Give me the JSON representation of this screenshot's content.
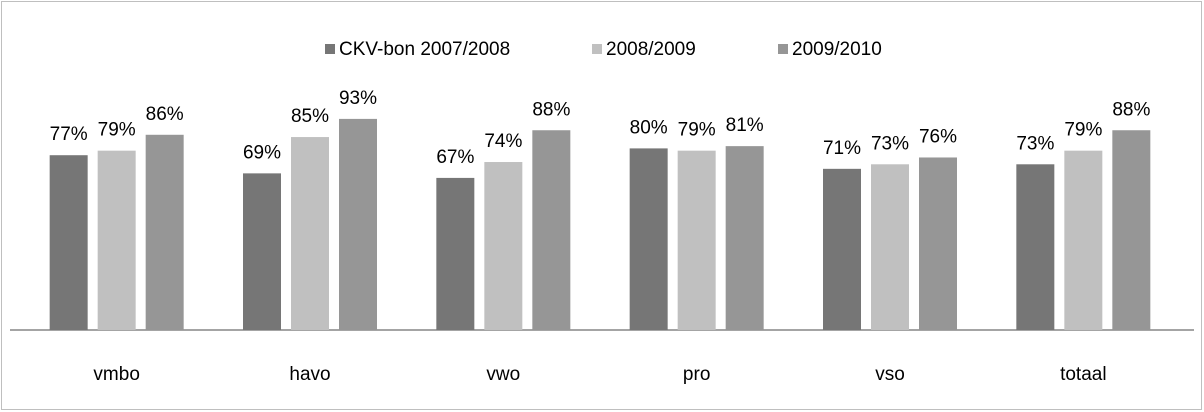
{
  "chart_data": {
    "type": "bar",
    "categories": [
      "vmbo",
      "havo",
      "vwo",
      "pro",
      "vso",
      "totaal"
    ],
    "series": [
      {
        "name": "CKV-bon 2007/2008",
        "color": "#767676",
        "values": [
          77,
          69,
          67,
          80,
          71,
          73
        ],
        "value_labels": [
          "77%",
          "69%",
          "67%",
          "80%",
          "71%",
          "73%"
        ]
      },
      {
        "name": "2008/2009",
        "color": "#c0c0c0",
        "values": [
          79,
          85,
          74,
          79,
          73,
          79
        ],
        "value_labels": [
          "79%",
          "85%",
          "74%",
          "79%",
          "73%",
          "79%"
        ]
      },
      {
        "name": "2009/2010",
        "color": "#969696",
        "values": [
          86,
          93,
          88,
          81,
          76,
          88
        ],
        "value_labels": [
          "86%",
          "93%",
          "88%",
          "81%",
          "76%",
          "88%"
        ]
      }
    ],
    "ylim": [
      0,
      100
    ],
    "legend": "top"
  }
}
